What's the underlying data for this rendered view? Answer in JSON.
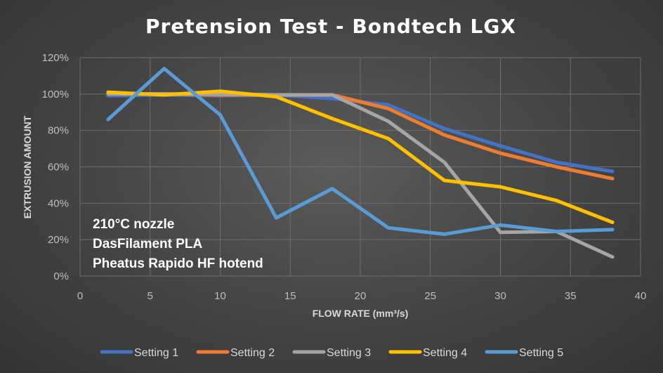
{
  "chart_data": {
    "type": "line",
    "title": "Pretension Test - Bondtech LGX",
    "xlabel": "FLOW RATE (mm³/s)",
    "ylabel": "EXTRUSION AMOUNT",
    "xlim": [
      0,
      40
    ],
    "ylim": [
      0,
      1.2
    ],
    "xticks": [
      "0",
      "5",
      "10",
      "15",
      "20",
      "25",
      "30",
      "35",
      "40"
    ],
    "yticks": [
      "0%",
      "20%",
      "40%",
      "60%",
      "80%",
      "100%",
      "120%"
    ],
    "grid": true,
    "legend": "bottom",
    "annotations": [
      "210°C nozzle",
      "DasFilament PLA",
      "Pheatus Rapido HF hotend"
    ],
    "x": [
      2,
      6,
      10,
      14,
      18,
      22,
      26,
      30,
      34,
      38
    ],
    "series": [
      {
        "name": "Setting 1",
        "color": "#4472c4",
        "values": [
          0.99,
          0.995,
          0.99,
          0.995,
          0.975,
          0.94,
          0.81,
          0.715,
          0.625,
          0.575
        ]
      },
      {
        "name": "Setting 2",
        "color": "#ed7d31",
        "values": [
          1.0,
          1.0,
          0.995,
          0.995,
          0.995,
          0.92,
          0.775,
          0.675,
          0.6,
          0.535
        ]
      },
      {
        "name": "Setting 3",
        "color": "#a5a5a5",
        "values": [
          1.0,
          1.0,
          1.0,
          0.995,
          0.995,
          0.85,
          0.625,
          0.24,
          0.245,
          0.105
        ]
      },
      {
        "name": "Setting 4",
        "color": "#ffc000",
        "values": [
          1.01,
          0.995,
          1.015,
          0.985,
          0.865,
          0.755,
          0.525,
          0.49,
          0.415,
          0.295
        ]
      },
      {
        "name": "Setting 5",
        "color": "#5b9bd5",
        "values": [
          0.86,
          1.14,
          0.885,
          0.32,
          0.48,
          0.265,
          0.23,
          0.28,
          0.245,
          0.255
        ]
      }
    ]
  }
}
